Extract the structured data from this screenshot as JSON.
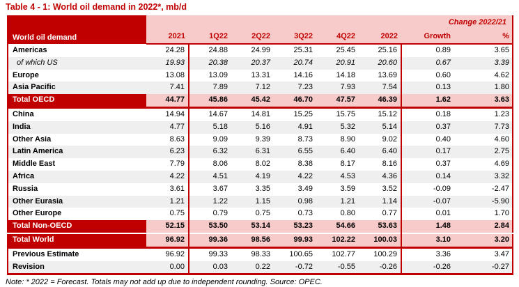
{
  "title": "Table 4 - 1: World oil demand in 2022*, mb/d",
  "table": {
    "label_header": "World oil demand",
    "change_header": "Change 2022/21",
    "columns": [
      "2021",
      "1Q22",
      "2Q22",
      "3Q22",
      "4Q22",
      "2022",
      "Growth",
      "%"
    ],
    "rows": [
      {
        "label": "Americas",
        "style": "normal",
        "values": [
          "24.28",
          "24.88",
          "24.99",
          "25.31",
          "25.45",
          "25.16",
          "0.89",
          "3.65"
        ]
      },
      {
        "label": "of which US",
        "style": "subitem",
        "values": [
          "19.93",
          "20.38",
          "20.37",
          "20.74",
          "20.91",
          "20.60",
          "0.67",
          "3.39"
        ]
      },
      {
        "label": "Europe",
        "style": "normal",
        "values": [
          "13.08",
          "13.09",
          "13.31",
          "14.16",
          "14.18",
          "13.69",
          "0.60",
          "4.62"
        ]
      },
      {
        "label": "Asia Pacific",
        "style": "normal",
        "values": [
          "7.41",
          "7.89",
          "7.12",
          "7.23",
          "7.93",
          "7.54",
          "0.13",
          "1.80"
        ]
      },
      {
        "label": "Total OECD",
        "style": "total",
        "sep_below": true,
        "values": [
          "44.77",
          "45.86",
          "45.42",
          "46.70",
          "47.57",
          "46.39",
          "1.62",
          "3.63"
        ]
      },
      {
        "label": "China",
        "style": "normal",
        "values": [
          "14.94",
          "14.67",
          "14.81",
          "15.25",
          "15.75",
          "15.12",
          "0.18",
          "1.23"
        ]
      },
      {
        "label": "India",
        "style": "normal",
        "values": [
          "4.77",
          "5.18",
          "5.16",
          "4.91",
          "5.32",
          "5.14",
          "0.37",
          "7.73"
        ]
      },
      {
        "label": "Other Asia",
        "style": "normal",
        "values": [
          "8.63",
          "9.09",
          "9.39",
          "8.73",
          "8.90",
          "9.02",
          "0.40",
          "4.60"
        ]
      },
      {
        "label": "Latin America",
        "style": "normal",
        "values": [
          "6.23",
          "6.32",
          "6.31",
          "6.55",
          "6.40",
          "6.40",
          "0.17",
          "2.75"
        ]
      },
      {
        "label": "Middle East",
        "style": "normal",
        "values": [
          "7.79",
          "8.06",
          "8.02",
          "8.38",
          "8.17",
          "8.16",
          "0.37",
          "4.69"
        ]
      },
      {
        "label": "Africa",
        "style": "normal",
        "values": [
          "4.22",
          "4.51",
          "4.19",
          "4.22",
          "4.53",
          "4.36",
          "0.14",
          "3.32"
        ]
      },
      {
        "label": "Russia",
        "style": "normal",
        "values": [
          "3.61",
          "3.67",
          "3.35",
          "3.49",
          "3.59",
          "3.52",
          "-0.09",
          "-2.47"
        ]
      },
      {
        "label": "Other Eurasia",
        "style": "normal",
        "values": [
          "1.21",
          "1.22",
          "1.15",
          "0.98",
          "1.21",
          "1.14",
          "-0.07",
          "-5.90"
        ]
      },
      {
        "label": "Other Europe",
        "style": "normal",
        "values": [
          "0.75",
          "0.79",
          "0.75",
          "0.73",
          "0.80",
          "0.77",
          "0.01",
          "1.70"
        ]
      },
      {
        "label": "Total Non-OECD",
        "style": "total",
        "values": [
          "52.15",
          "53.50",
          "53.14",
          "53.23",
          "54.66",
          "53.63",
          "1.48",
          "2.84"
        ]
      },
      {
        "label": "Total World",
        "style": "total",
        "gap_above": true,
        "sep_below": true,
        "values": [
          "96.92",
          "99.36",
          "98.56",
          "99.93",
          "102.22",
          "100.03",
          "3.10",
          "3.20"
        ]
      },
      {
        "label": "Previous Estimate",
        "style": "normal",
        "values": [
          "96.92",
          "99.33",
          "98.33",
          "100.65",
          "102.77",
          "100.29",
          "3.36",
          "3.47"
        ]
      },
      {
        "label": "Revision",
        "style": "normal",
        "values": [
          "0.00",
          "0.03",
          "0.22",
          "-0.72",
          "-0.55",
          "-0.26",
          "-0.26",
          "-0.27"
        ]
      }
    ]
  },
  "note": "Note: * 2022 = Forecast. Totals may not add up due to independent rounding. Source: OPEC.",
  "colors": {
    "header_red": "#c00000",
    "pink_fill": "#f8cbcb",
    "row_alt_gray": "#efefef"
  }
}
